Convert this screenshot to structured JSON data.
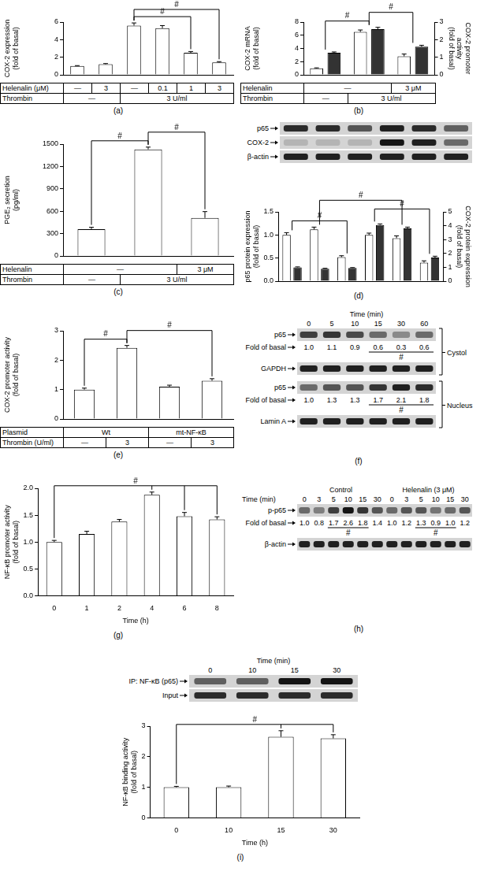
{
  "chart_data": [
    {
      "panel": "(a)",
      "type": "bar",
      "y_label": [
        "COX-2 expression",
        "(fold of basal)"
      ],
      "categories": [
        null,
        null,
        null,
        null,
        null,
        null
      ],
      "values": [
        1.0,
        1.2,
        5.6,
        5.3,
        2.5,
        1.4
      ],
      "errors": [
        0.05,
        0.08,
        0.3,
        0.3,
        0.15,
        0.1
      ],
      "color": "#ffffff",
      "ylim": [
        0,
        6
      ],
      "yticks": [
        0,
        2,
        4,
        6
      ],
      "grid": false,
      "significance": [
        {
          "from": 2,
          "to": 4,
          "label": "#"
        },
        {
          "from": 2,
          "to": 5,
          "label": "#"
        }
      ],
      "conditions": [
        {
          "label": "Helenalin (μM)",
          "cells": [
            {
              "text": "—",
              "span": 1
            },
            {
              "text": "3",
              "span": 1
            },
            {
              "text": "—",
              "span": 1
            },
            {
              "text": "0.1",
              "span": 1
            },
            {
              "text": "1",
              "span": 1
            },
            {
              "text": "3",
              "span": 1
            }
          ]
        },
        {
          "label": "Thrombin",
          "cells": [
            {
              "text": "—",
              "span": 2
            },
            {
              "text": "3 U/ml",
              "span": 4
            }
          ]
        }
      ]
    },
    {
      "panel": "(b)",
      "type": "bar",
      "y_label": [
        "COX-2 mRNA",
        "(fold of basal)"
      ],
      "y2_label": [
        "COX-2 promoter",
        "activity",
        "(fold of basal)"
      ],
      "categories": [
        null,
        null,
        null
      ],
      "series": [
        {
          "color": "#ffffff",
          "values": [
            1.0,
            6.5,
            2.8
          ],
          "errors": [
            0.06,
            0.3,
            0.35
          ]
        },
        {
          "color": "#333333",
          "axis": "y2",
          "values": [
            1.25,
            2.6,
            1.6
          ],
          "errors": [
            0.05,
            0.1,
            0.08
          ]
        }
      ],
      "ylim": [
        0,
        8
      ],
      "yticks": [
        0,
        2,
        4,
        6,
        8
      ],
      "y2lim": [
        0,
        3
      ],
      "y2ticks": [
        0,
        1,
        2,
        3
      ],
      "grid": false,
      "significance": [
        {
          "from": 0,
          "to": 1,
          "label": "#"
        },
        {
          "from": 1,
          "to": 2,
          "label": "#"
        }
      ],
      "conditions": [
        {
          "label": "Helenalin",
          "cells": [
            {
              "text": "—",
              "span": 2
            },
            {
              "text": "3 μM",
              "span": 1
            }
          ]
        },
        {
          "label": "Thrombin",
          "cells": [
            {
              "text": "—",
              "span": 1
            },
            {
              "text": "3 U/ml",
              "span": 2
            }
          ]
        }
      ]
    },
    {
      "panel": "(c)",
      "type": "bar",
      "y_label": [
        "PGE₂ secretion",
        "(pg/ml)"
      ],
      "categories": [
        null,
        null,
        null
      ],
      "values": [
        360,
        1430,
        510
      ],
      "errors": [
        25,
        30,
        85
      ],
      "color": "#ffffff",
      "ylim": [
        0,
        1500
      ],
      "yticks": [
        0,
        300,
        600,
        900,
        1200,
        1500
      ],
      "grid": false,
      "significance": [
        {
          "from": 0,
          "to": 1,
          "label": "#"
        },
        {
          "from": 1,
          "to": 2,
          "label": "#"
        }
      ],
      "conditions": [
        {
          "label": "Helenalin",
          "cells": [
            {
              "text": "—",
              "span": 2
            },
            {
              "text": "3 μM",
              "span": 1
            }
          ]
        },
        {
          "label": "Thrombin",
          "cells": [
            {
              "text": "—",
              "span": 1
            },
            {
              "text": "3 U/ml",
              "span": 2
            }
          ]
        }
      ]
    },
    {
      "panel": "(d)",
      "type": "bar",
      "y_label": [
        "p65 protein expression",
        "(fold of basal)"
      ],
      "y2_label": [
        "COX-2 protein expression",
        "(fold of basal)"
      ],
      "categories": [
        null,
        null,
        null,
        null,
        null,
        null
      ],
      "series": [
        {
          "color": "#ffffff",
          "values": [
            1.0,
            1.12,
            0.52,
            1.0,
            0.93,
            0.4
          ],
          "errors": [
            0.05,
            0.05,
            0.03,
            0.04,
            0.05,
            0.04
          ]
        },
        {
          "color": "#333333",
          "axis": "y2",
          "values": [
            1.0,
            0.9,
            0.95,
            4.05,
            3.8,
            1.7
          ],
          "errors": [
            0.03,
            0.03,
            0.03,
            0.08,
            0.1,
            0.1
          ]
        }
      ],
      "ylim": [
        0,
        1.5
      ],
      "yticks": [
        {
          "value": 0,
          "label": "0.0"
        },
        0.5,
        {
          "value": 1,
          "label": "1.0"
        },
        1.5
      ],
      "y2lim": [
        0,
        5
      ],
      "y2ticks": [
        0,
        1,
        2,
        3,
        4,
        5
      ],
      "grid": false,
      "significance": [
        {
          "from": 0,
          "to": 2,
          "label": "#"
        },
        {
          "from": 3,
          "to": 5,
          "label": "#"
        },
        {
          "from": 1,
          "to": 4,
          "label": "#"
        }
      ]
    },
    {
      "panel": "(e)",
      "type": "bar",
      "y_label": [
        "COX-2 promoter activity",
        "(fold of basal)"
      ],
      "categories": [
        null,
        null,
        null,
        null
      ],
      "values": [
        1.0,
        2.42,
        1.1,
        1.3
      ],
      "errors": [
        0.05,
        0.08,
        0.05,
        0.07
      ],
      "color": "#ffffff",
      "ylim": [
        0,
        3
      ],
      "yticks": [
        0,
        1,
        2,
        3
      ],
      "grid": false,
      "significance": [
        {
          "from": 0,
          "to": 1,
          "label": "#"
        },
        {
          "from": 1,
          "to": 3,
          "label": "#"
        }
      ],
      "conditions": [
        {
          "label": "Plasmid",
          "cells": [
            {
              "text": "Wt",
              "span": 2
            },
            {
              "text": "mt-NF-κB",
              "span": 2
            }
          ]
        },
        {
          "label": "Thrombin (U/ml)",
          "cells": [
            {
              "text": "—",
              "span": 1
            },
            {
              "text": "3",
              "span": 1
            },
            {
              "text": "—",
              "span": 1
            },
            {
              "text": "3",
              "span": 1
            }
          ]
        }
      ]
    },
    {
      "panel": "(g)",
      "type": "bar",
      "x_label": "Time (h)",
      "y_label": [
        "NF-κB promoter activity",
        "(fold of basal)"
      ],
      "categories": [
        0,
        1,
        2,
        4,
        6,
        8
      ],
      "values": [
        1.0,
        1.15,
        1.38,
        1.88,
        1.48,
        1.42
      ],
      "errors": [
        0.03,
        0.05,
        0.04,
        0.05,
        0.07,
        0.05
      ],
      "color": "#ffffff",
      "ylim": [
        0,
        2
      ],
      "yticks": [
        {
          "value": 0,
          "label": "0.0"
        },
        0.5,
        {
          "value": 1,
          "label": "1.0"
        },
        1.5,
        {
          "value": 2,
          "label": "2.0"
        }
      ],
      "grid": false,
      "significance": [
        {
          "from": 0,
          "to": [
            3,
            4,
            5
          ],
          "label": "#"
        }
      ]
    },
    {
      "panel": "(i)",
      "type": "bar",
      "x_label": "Time (h)",
      "y_label": [
        "NF-κB binding activity",
        "(fold of basal)"
      ],
      "categories": [
        0,
        10,
        15,
        30
      ],
      "values": [
        1.0,
        1.0,
        2.65,
        2.6
      ],
      "errors": [
        0.03,
        0.04,
        0.2,
        0.12
      ],
      "color": "#ffffff",
      "ylim": [
        0,
        3
      ],
      "yticks": [
        0,
        1,
        2,
        3
      ],
      "grid": false,
      "significance": [
        {
          "from": 0,
          "to": [
            2,
            3
          ],
          "label": "#"
        }
      ]
    }
  ],
  "blots": [
    {
      "sections": [
        {
          "rows": [
            {
              "label": "p65",
              "intensity": [
                0.8,
                0.8,
                0.6,
                0.85,
                0.8,
                0.55
              ]
            },
            {
              "label": "COX-2",
              "intensity": [
                0.15,
                0.15,
                0.15,
                0.9,
                0.85,
                0.5
              ]
            },
            {
              "label": "β-actin",
              "intensity": [
                0.85,
                0.85,
                0.85,
                0.85,
                0.85,
                0.85
              ]
            }
          ]
        }
      ]
    },
    {
      "panel": "(f)",
      "lane_label": "Time (min)",
      "lanes": [
        0,
        5,
        10,
        15,
        30,
        60
      ],
      "sections": [
        {
          "name": "Cystol",
          "rows": [
            {
              "label": "p65",
              "intensity": [
                0.7,
                0.75,
                0.65,
                0.5,
                0.35,
                0.5
              ],
              "fold_label": "Fold of basal",
              "folds": [
                "1.0",
                "1.1",
                "0.9",
                "0.6",
                "0.3",
                "0.6"
              ],
              "underline": [
                [
                  3,
                  5
                ]
              ],
              "mark": "#"
            },
            {
              "label": "GAPDH",
              "intensity": [
                0.85,
                0.85,
                0.85,
                0.85,
                0.85,
                0.85
              ]
            }
          ]
        },
        {
          "name": "Nucleus",
          "rows": [
            {
              "label": "p65",
              "intensity": [
                0.5,
                0.6,
                0.6,
                0.75,
                0.85,
                0.8
              ],
              "fold_label": "Fold of basal",
              "folds": [
                "1.0",
                "1.3",
                "1.3",
                "1.7",
                "2.1",
                "1.8"
              ],
              "underline": [
                [
                  3,
                  5
                ]
              ],
              "mark": "#"
            },
            {
              "label": "Lamin A",
              "intensity": [
                0.85,
                0.85,
                0.85,
                0.85,
                0.85,
                0.85
              ]
            }
          ]
        }
      ]
    },
    {
      "panel": "(h)",
      "lane_label": "Time (min)",
      "lane_groups": [
        {
          "name": "Control",
          "span": 6
        },
        {
          "name": "Helenalin (3 μM)",
          "span": 6
        }
      ],
      "lanes": [
        0,
        3,
        5,
        10,
        15,
        30,
        0,
        3,
        5,
        10,
        15,
        30
      ],
      "sections": [
        {
          "rows": [
            {
              "label": "p-p65",
              "intensity": [
                0.5,
                0.4,
                0.7,
                0.9,
                0.75,
                0.6,
                0.5,
                0.6,
                0.6,
                0.45,
                0.5,
                0.6
              ],
              "fold_label": "Fold of basal",
              "folds": [
                "1.0",
                "0.8",
                "1.7",
                "2.6",
                "1.8",
                "1.4",
                "1.0",
                "1.2",
                "1.3",
                "0.9",
                "1.0",
                "1.2"
              ],
              "underline": [
                [
                  2,
                  4
                ],
                [
                  8,
                  10
                ]
              ],
              "mark": "#"
            },
            {
              "label": "β-actin",
              "intensity": [
                0.85,
                0.85,
                0.85,
                0.85,
                0.85,
                0.85,
                0.85,
                0.85,
                0.85,
                0.85,
                0.85,
                0.85
              ]
            }
          ]
        }
      ]
    },
    {
      "lane_label": "Time (min)",
      "lanes": [
        0,
        10,
        15,
        30
      ],
      "sections": [
        {
          "rows": [
            {
              "label": "IP: NF-κB (p65)",
              "intensity": [
                0.55,
                0.55,
                0.9,
                0.9
              ]
            },
            {
              "label": "Input",
              "intensity": [
                0.8,
                0.8,
                0.8,
                0.8
              ]
            }
          ]
        }
      ]
    }
  ]
}
